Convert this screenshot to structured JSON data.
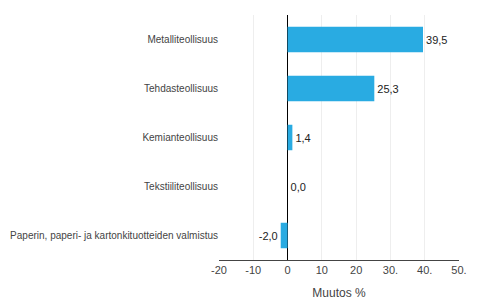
{
  "chart_data": {
    "type": "bar",
    "orientation": "horizontal",
    "categories": [
      "Paperin, paperi- ja kartonkituotteiden valmistus",
      "Tekstiiliteollisuus",
      "Kemianteollisuus",
      "Tehdasteollisuus",
      "Metalliteollisuus"
    ],
    "values": [
      -2.0,
      0.0,
      1.4,
      25.3,
      39.5
    ],
    "value_labels": [
      "-2,0",
      "0,0",
      "1,4",
      "25,3",
      "39,5"
    ],
    "data_labels": true,
    "color": "#29abe2",
    "xlabel": "Muutos %",
    "xlim": [
      -20,
      50
    ],
    "xticks": [
      -20,
      -10,
      0,
      10,
      20,
      {
        "value": 30,
        "label": "30."
      },
      {
        "value": 40,
        "label": "40."
      },
      {
        "value": 50,
        "label": "50."
      }
    ],
    "grid": true
  }
}
